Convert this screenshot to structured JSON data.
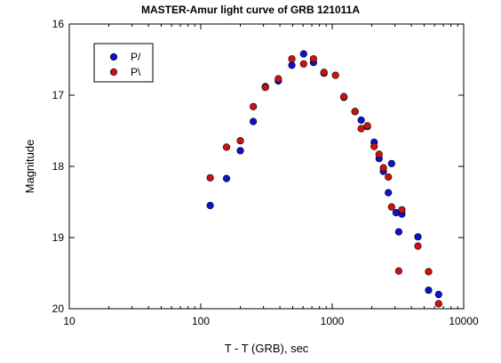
{
  "chart_data": {
    "type": "scatter",
    "title": "MASTER-Amur light curve of GRB 121011A",
    "xlabel": "T - T (GRB), sec",
    "ylabel": "Magnitude",
    "x_scale": "log",
    "xlim": [
      10,
      10000
    ],
    "ylim": [
      16,
      20
    ],
    "y_inverted": true,
    "x_ticks": [
      10,
      100,
      1000,
      10000
    ],
    "x_tick_labels": [
      "10",
      "100",
      "1000",
      "10000"
    ],
    "y_ticks": [
      16,
      17,
      18,
      19,
      20
    ],
    "y_tick_labels": [
      "16",
      "17",
      "18",
      "19",
      "20"
    ],
    "grid": false,
    "legend": "top-left",
    "series": [
      {
        "name": "P/",
        "color": "#1010d0",
        "points": [
          [
            118,
            18.55
          ],
          [
            157,
            18.17
          ],
          [
            200,
            17.78
          ],
          [
            251,
            17.37
          ],
          [
            310,
            16.88
          ],
          [
            389,
            16.8
          ],
          [
            493,
            16.58
          ],
          [
            606,
            16.42
          ],
          [
            720,
            16.54
          ],
          [
            866,
            16.69
          ],
          [
            1227,
            17.03
          ],
          [
            1491,
            17.23
          ],
          [
            1661,
            17.35
          ],
          [
            1851,
            17.44
          ],
          [
            2084,
            17.66
          ],
          [
            2273,
            17.89
          ],
          [
            2450,
            18.07
          ],
          [
            2673,
            18.37
          ],
          [
            2827,
            17.96
          ],
          [
            3060,
            18.65
          ],
          [
            3206,
            18.92
          ],
          [
            3388,
            18.67
          ],
          [
            4487,
            18.99
          ],
          [
            5407,
            19.74
          ],
          [
            6444,
            19.8
          ]
        ]
      },
      {
        "name": "P\\",
        "color": "#d01010",
        "points": [
          [
            118,
            18.16
          ],
          [
            157,
            17.73
          ],
          [
            200,
            17.64
          ],
          [
            251,
            17.16
          ],
          [
            310,
            16.89
          ],
          [
            389,
            16.77
          ],
          [
            493,
            16.49
          ],
          [
            606,
            16.56
          ],
          [
            720,
            16.49
          ],
          [
            866,
            16.68
          ],
          [
            1058,
            16.72
          ],
          [
            1227,
            17.02
          ],
          [
            1491,
            17.23
          ],
          [
            1661,
            17.47
          ],
          [
            1851,
            17.43
          ],
          [
            2084,
            17.72
          ],
          [
            2273,
            17.83
          ],
          [
            2450,
            18.02
          ],
          [
            2673,
            18.15
          ],
          [
            2827,
            18.57
          ],
          [
            3206,
            19.47
          ],
          [
            3388,
            18.61
          ],
          [
            4487,
            19.12
          ],
          [
            5407,
            19.48
          ],
          [
            6444,
            19.93
          ]
        ]
      }
    ]
  }
}
